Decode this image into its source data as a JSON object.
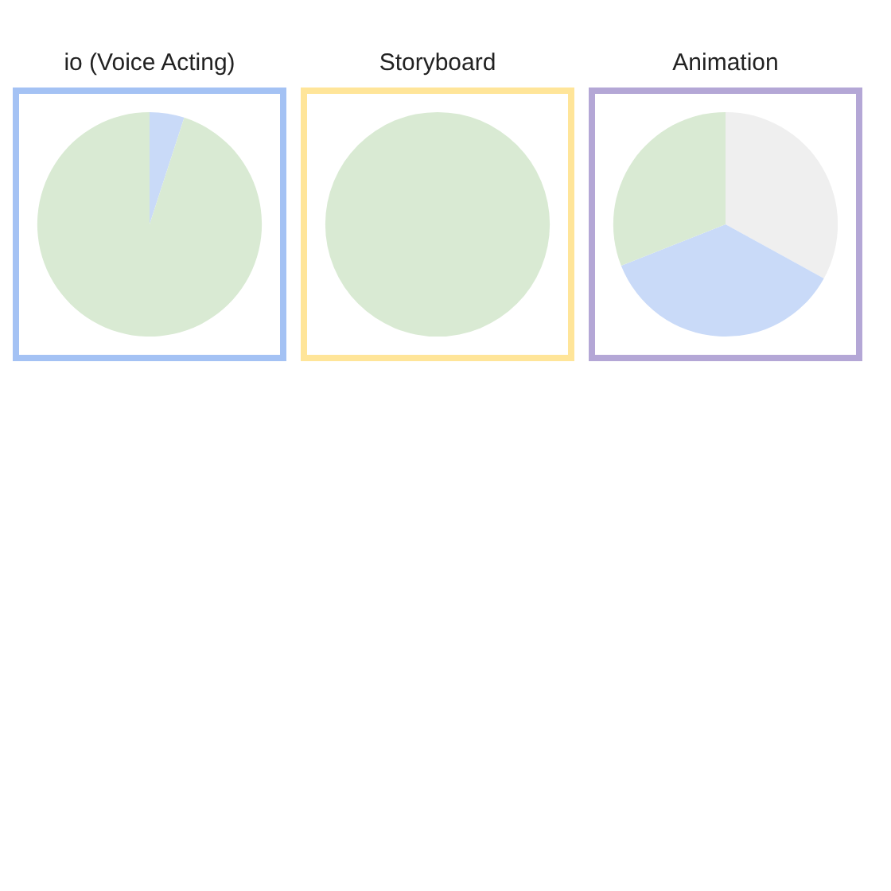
{
  "chart_data": [
    {
      "type": "pie",
      "title": "io (Voice Acting)",
      "categories": [
        null,
        null
      ],
      "values": [
        5,
        95
      ],
      "colors": [
        "#c9daf8",
        "#d9ead3"
      ]
    },
    {
      "type": "pie",
      "title": "Storyboard",
      "categories": [
        null
      ],
      "values": [
        100
      ],
      "colors": [
        "#d9ead3"
      ]
    },
    {
      "type": "pie",
      "title": "Animation",
      "categories": [
        null,
        null,
        null
      ],
      "values": [
        33,
        36,
        31
      ],
      "colors": [
        "#efefef",
        "#c9daf8",
        "#d9ead3"
      ]
    }
  ]
}
